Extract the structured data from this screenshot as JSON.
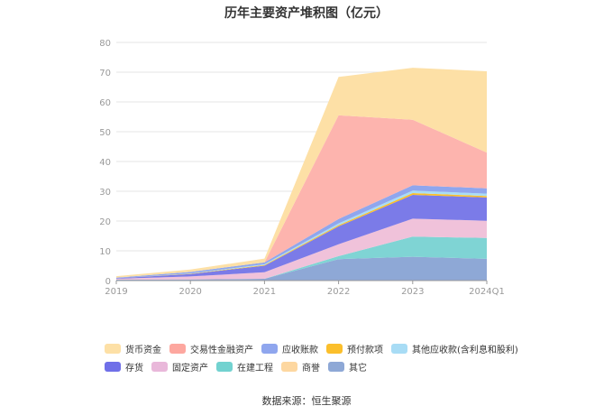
{
  "chart_data": {
    "type": "area",
    "stacked": true,
    "title": "历年主要资产堆积图（亿元）",
    "x": [
      "2019",
      "2020",
      "2021",
      "2022",
      "2023",
      "2024Q1"
    ],
    "ylim": [
      0,
      80
    ],
    "yticks": [
      0,
      10,
      20,
      30,
      40,
      50,
      60,
      70,
      80
    ],
    "grid": true,
    "legend_position": "bottom",
    "series": [
      {
        "name": "其它",
        "color": "#8ea8d6",
        "values": [
          0.3,
          0.4,
          0.6,
          7.2,
          8.0,
          7.3
        ]
      },
      {
        "name": "在建工程",
        "color": "#7fd4d4",
        "values": [
          0.0,
          0.0,
          0.0,
          1.0,
          6.8,
          7.0
        ]
      },
      {
        "name": "固定资产",
        "color": "#f0c2da",
        "values": [
          0.3,
          1.0,
          2.2,
          4.0,
          6.0,
          5.8
        ]
      },
      {
        "name": "存货",
        "color": "#7b7be8",
        "values": [
          0.2,
          0.8,
          2.2,
          6.0,
          8.0,
          7.8
        ]
      },
      {
        "name": "预付款项",
        "color": "#fbbf2c",
        "values": [
          0.0,
          0.1,
          0.2,
          0.4,
          0.6,
          0.5
        ]
      },
      {
        "name": "其他应收款(含利息和股利)",
        "color": "#a8dcf5",
        "values": [
          0.0,
          0.1,
          0.3,
          0.6,
          0.8,
          0.8
        ]
      },
      {
        "name": "应收账款",
        "color": "#8fa6ee",
        "values": [
          0.2,
          0.5,
          0.6,
          1.5,
          1.8,
          1.8
        ]
      },
      {
        "name": "交易性金融资产",
        "color": "#fdb4ae",
        "values": [
          0.0,
          0.0,
          0.0,
          34.8,
          22.0,
          12.0
        ]
      },
      {
        "name": "商誉",
        "color": "#fde0a6",
        "values": [
          0.0,
          0.0,
          0.0,
          0.0,
          0.0,
          0.0
        ]
      },
      {
        "name": "货币资金",
        "color": "#fde0a6",
        "values": [
          0.5,
          0.8,
          1.3,
          12.9,
          17.5,
          27.3
        ]
      }
    ],
    "legend": [
      {
        "name": "货币资金",
        "color": "#fde0a6"
      },
      {
        "name": "交易性金融资产",
        "color": "#fda79f"
      },
      {
        "name": "应收账款",
        "color": "#8fa6ee"
      },
      {
        "name": "预付款项",
        "color": "#fbbf2c"
      },
      {
        "name": "其他应收款(含利息和股利)",
        "color": "#a8dcf5"
      },
      {
        "name": "存货",
        "color": "#6f6fe8"
      },
      {
        "name": "固定资产",
        "color": "#e9b8da"
      },
      {
        "name": "在建工程",
        "color": "#72d2d0"
      },
      {
        "name": "商誉",
        "color": "#fdd7a0"
      },
      {
        "name": "其它",
        "color": "#8ea8d6"
      }
    ]
  },
  "source_note": "数据来源：恒生聚源"
}
